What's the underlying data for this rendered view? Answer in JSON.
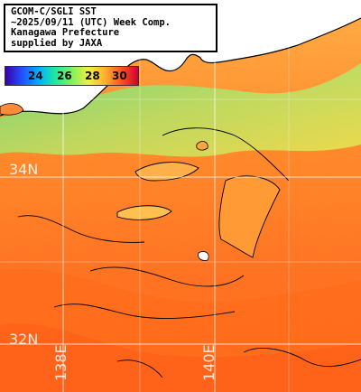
{
  "info": {
    "line1": "GCOM-C/SGLI SST",
    "line2": "~2025/09/11 (UTC) Week Comp.",
    "line3": "Kanagawa Prefecture",
    "line4": "supplied by JAXA"
  },
  "colorbar": {
    "ticks": [
      "24",
      "26",
      "28",
      "30"
    ],
    "colors": [
      "#3a00a8",
      "#2250ff",
      "#00b0ff",
      "#20e8a0",
      "#80f060",
      "#f0f040",
      "#ffb030",
      "#ff5020",
      "#d00030"
    ]
  },
  "graticule": {
    "lat_labels": [
      "34N",
      "32N"
    ],
    "lon_labels": [
      "138E",
      "140E"
    ]
  },
  "colors": {
    "sea_warm": "#ff7a22",
    "sea_hot": "#ff5a1a",
    "sea_mid": "#ffa63a",
    "sea_cool": "#c8f07a",
    "sea_cold": "#5de88a",
    "land": "#ffffff",
    "coast": "#000000",
    "grid": "#ffffff"
  }
}
